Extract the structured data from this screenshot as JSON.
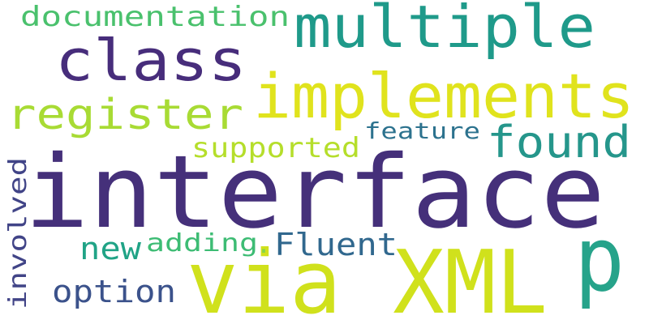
{
  "words": [
    {
      "text": "interface",
      "color": "#45307a"
    },
    {
      "text": "via XML",
      "color": "#d0e11c"
    },
    {
      "text": "implements",
      "color": "#e0e31d"
    },
    {
      "text": "multiple",
      "color": "#1f9a8a"
    },
    {
      "text": "class",
      "color": "#472d7b"
    },
    {
      "text": "register",
      "color": "#a8db34"
    },
    {
      "text": "documentation",
      "color": "#4ac16d"
    },
    {
      "text": "found",
      "color": "#25968b"
    },
    {
      "text": "p",
      "color": "#26a38a"
    },
    {
      "text": "supported",
      "color": "#b5de2b"
    },
    {
      "text": "feature",
      "color": "#2c728e"
    },
    {
      "text": "Fluent",
      "color": "#31688e"
    },
    {
      "text": "new",
      "color": "#20a386"
    },
    {
      "text": "adding",
      "color": "#3dbc74"
    },
    {
      "text": "option",
      "color": "#3b528b"
    },
    {
      "text": "involved",
      "color": "#414487"
    },
    {
      "text": ".",
      "color": "#84d44b"
    }
  ]
}
